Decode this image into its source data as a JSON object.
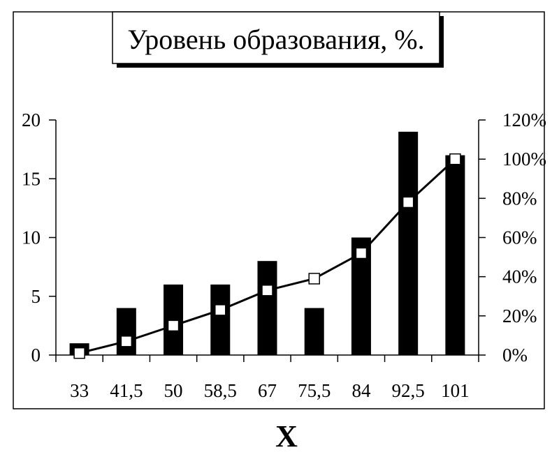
{
  "chart_data": {
    "type": "bar",
    "title": "Уровень образования, %.",
    "xlabel": "X",
    "ylabel": "",
    "categories": [
      "33",
      "41,5",
      "50",
      "58,5",
      "67",
      "75,5",
      "84",
      "92,5",
      "101"
    ],
    "series": [
      {
        "type": "bar",
        "axis": "left",
        "color": "#000000",
        "values": [
          1,
          4,
          6,
          6,
          8,
          4,
          10,
          19,
          17
        ]
      },
      {
        "type": "line",
        "axis": "right",
        "marker": "square",
        "color": "#000000",
        "marker_fill": "#ffffff",
        "values": [
          1,
          7,
          15,
          23,
          33,
          39,
          52,
          78,
          100
        ]
      }
    ],
    "ylim": [
      0,
      20
    ],
    "yticks": [
      "0",
      "5",
      "10",
      "15",
      "20"
    ],
    "y2lim": [
      0,
      120
    ],
    "y2ticks": [
      "0%",
      "20%",
      "40%",
      "60%",
      "80%",
      "100%",
      "120%"
    ],
    "grid": false,
    "legend": "none"
  }
}
